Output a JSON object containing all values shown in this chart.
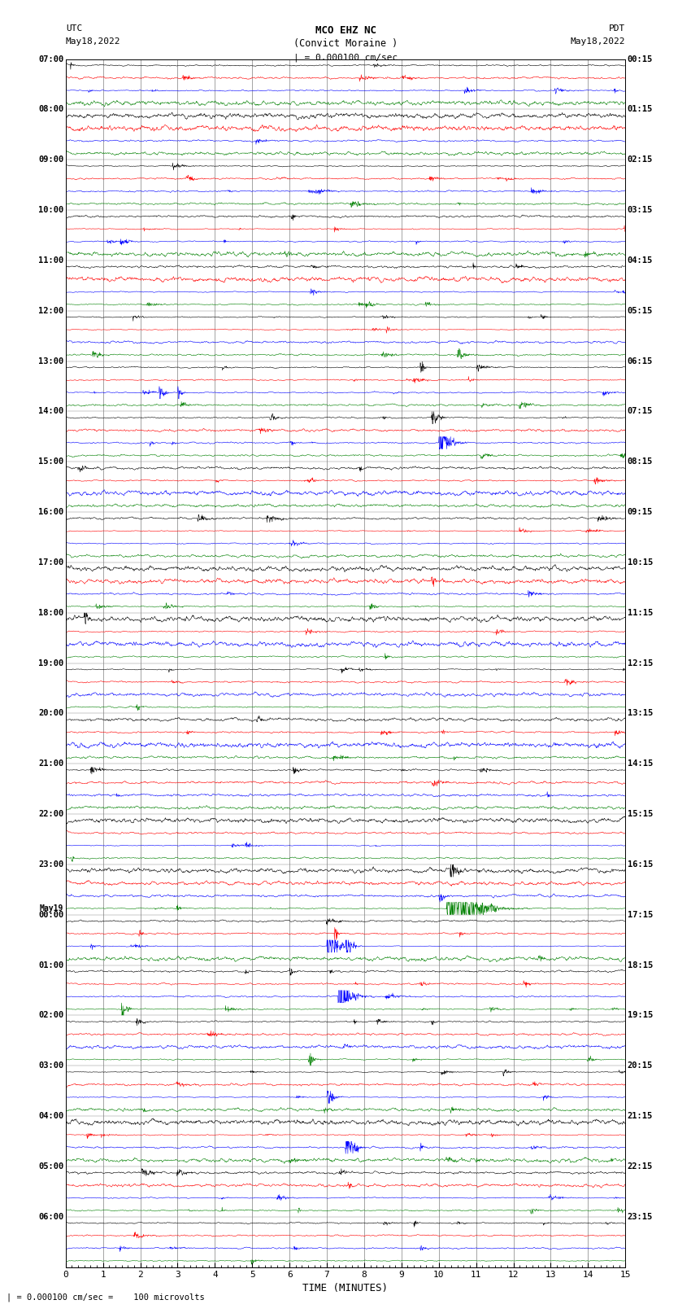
{
  "title_line1": "MCO EHZ NC",
  "title_line2": "(Convict Moraine )",
  "title_line3": "| = 0.000100 cm/sec",
  "left_header_line1": "UTC",
  "left_header_line2": "May18,2022",
  "right_header_line1": "PDT",
  "right_header_line2": "May18,2022",
  "xlabel": "TIME (MINUTES)",
  "footnote": "| = 0.000100 cm/sec =    100 microvolts",
  "xlim": [
    0,
    15
  ],
  "xticks": [
    0,
    1,
    2,
    3,
    4,
    5,
    6,
    7,
    8,
    9,
    10,
    11,
    12,
    13,
    14,
    15
  ],
  "colors_cycle": [
    "black",
    "red",
    "blue",
    "green"
  ],
  "left_times": [
    "07:00",
    "08:00",
    "09:00",
    "10:00",
    "11:00",
    "12:00",
    "13:00",
    "14:00",
    "15:00",
    "16:00",
    "17:00",
    "18:00",
    "19:00",
    "20:00",
    "21:00",
    "22:00",
    "23:00",
    "May19",
    "00:00",
    "01:00",
    "02:00",
    "03:00",
    "04:00",
    "05:00",
    "06:00"
  ],
  "right_times": [
    "00:15",
    "01:15",
    "02:15",
    "03:15",
    "04:15",
    "05:15",
    "06:15",
    "07:15",
    "08:15",
    "09:15",
    "10:15",
    "11:15",
    "12:15",
    "13:15",
    "14:15",
    "15:15",
    "16:15",
    "17:15",
    "18:15",
    "19:15",
    "20:15",
    "21:15",
    "22:15",
    "23:15"
  ],
  "background_color": "#ffffff",
  "grid_color": "#808080",
  "num_hours": 24,
  "traces_per_hour": 4
}
